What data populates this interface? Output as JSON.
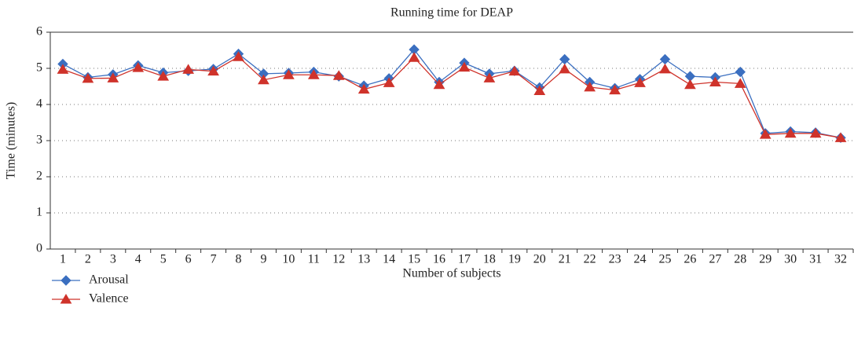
{
  "chart_data": {
    "type": "line",
    "title": "Running time for DEAP",
    "x_label": "Number of subjects",
    "y_label": "Time (minutes)",
    "categories": [
      "1",
      "2",
      "3",
      "4",
      "5",
      "6",
      "7",
      "8",
      "9",
      "10",
      "11",
      "12",
      "13",
      "14",
      "15",
      "16",
      "17",
      "18",
      "19",
      "20",
      "21",
      "22",
      "23",
      "24",
      "25",
      "26",
      "27",
      "28",
      "29",
      "30",
      "31",
      "32"
    ],
    "series": [
      {
        "name": "Arousal",
        "color": "#3b6fc0",
        "marker": "diamond",
        "values": [
          5.12,
          4.75,
          4.83,
          5.08,
          4.88,
          4.93,
          4.98,
          5.4,
          4.85,
          4.87,
          4.9,
          4.78,
          4.52,
          4.72,
          5.52,
          4.62,
          5.15,
          4.85,
          4.93,
          4.47,
          5.25,
          4.62,
          4.45,
          4.7,
          5.25,
          4.78,
          4.75,
          4.9,
          3.2,
          3.25,
          3.22,
          3.08
        ]
      },
      {
        "name": "Valence",
        "color": "#cf332b",
        "marker": "triangle",
        "values": [
          4.97,
          4.72,
          4.73,
          5.02,
          4.78,
          4.97,
          4.92,
          5.32,
          4.68,
          4.82,
          4.82,
          4.8,
          4.42,
          4.6,
          5.3,
          4.55,
          5.03,
          4.73,
          4.92,
          4.38,
          4.98,
          4.48,
          4.4,
          4.6,
          4.98,
          4.55,
          4.62,
          4.58,
          3.17,
          3.2,
          3.2,
          3.08
        ]
      }
    ],
    "ylim": [
      0,
      6
    ],
    "yticks": [
      0,
      1,
      2,
      3,
      4,
      5,
      6
    ],
    "grid": true,
    "legend": "bottom-left"
  }
}
